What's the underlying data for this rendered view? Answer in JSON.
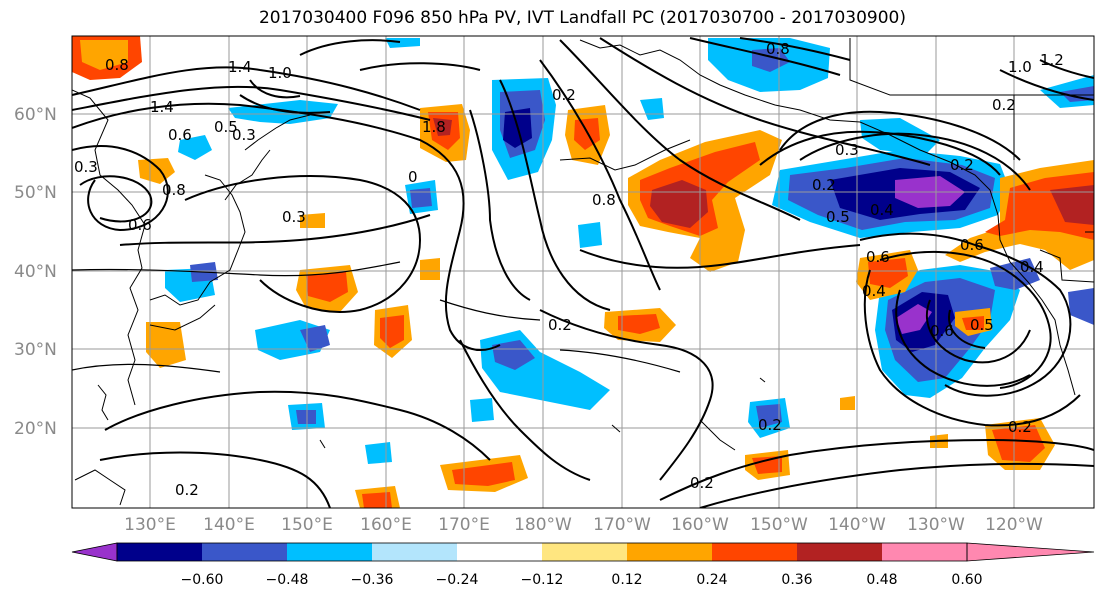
{
  "title": "2017030400 F096 850 hPa PV, IVT Landfall PC (2017030700 - 2017030900)",
  "lat_labels": [
    "60°N",
    "50°N",
    "40°N",
    "30°N",
    "20°N"
  ],
  "lon_labels": [
    "130°E",
    "140°E",
    "150°E",
    "160°E",
    "170°E",
    "180°W",
    "170°W",
    "160°W",
    "150°W",
    "140°W",
    "130°W",
    "120°W"
  ],
  "colorbar": {
    "ticks": [
      "−0.60",
      "−0.48",
      "−0.36",
      "−0.24",
      "−0.12",
      "0.12",
      "0.24",
      "0.36",
      "0.48",
      "0.60"
    ],
    "colors": [
      "#9932cc",
      "#00008b",
      "#3a57c9",
      "#00bfff",
      "#b3e5fc",
      "#ffffff",
      "#ffe680",
      "#ffa500",
      "#ff4500",
      "#b22222",
      "#ff88b0"
    ]
  },
  "contour_labels": [
    "1.4",
    "1.0",
    "1.4",
    "0.6",
    "0.6",
    "0.3",
    "0.3",
    "0.2",
    "0.8",
    "0.4",
    "0.6",
    "0.2",
    "0.5",
    "0.4",
    "0.6",
    "0.4",
    "0.6",
    "0.5",
    "1.0",
    "1.2",
    "0.2",
    "0.2",
    "0.2",
    "0.2",
    "0.8",
    "0.8",
    "0.3",
    "0.5",
    "1.8",
    "0.2",
    "0.2",
    "0.2",
    "0.8",
    "0.3",
    "0"
  ]
}
